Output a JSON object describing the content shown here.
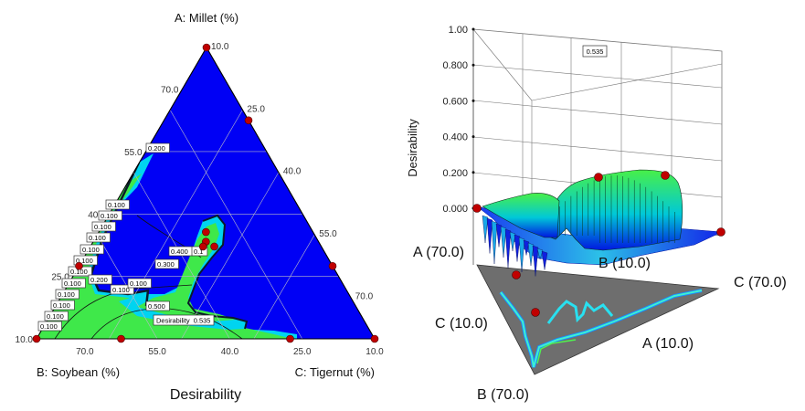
{
  "chart_data": [
    {
      "type": "heatmap",
      "subtype": "ternary-contour",
      "title": "",
      "xlabel": "Desirability",
      "vertex_labels": {
        "top": "A: Millet (%)",
        "left": "B: Soybean (%)",
        "right": "C: Tigernut (%)"
      },
      "tick_labels": {
        "A": [
          "10.0",
          "25.0",
          "40.0",
          "55.0",
          "70.0"
        ],
        "B": [
          "70.0",
          "55.0",
          "40.0",
          "25.0",
          "10.0"
        ],
        "C": [
          "10.0",
          "25.0",
          "40.0",
          "55.0",
          "70.0"
        ]
      },
      "contour_levels": [
        0.1,
        0.2,
        0.3,
        0.4,
        0.5
      ],
      "contour_labels": [
        "0.200",
        "0.100",
        "0.100",
        "0.100",
        "0.100",
        "0.100",
        "0.100",
        "0.100",
        "0.100",
        "0.100",
        "0.200",
        "0.100",
        "0.100",
        "0.100",
        "0.100",
        "0.400",
        "0.300",
        "0.100",
        "0.500",
        "0.1"
      ],
      "optimum": {
        "label": "Desirability",
        "value": 0.535
      },
      "design_points": [
        {
          "A": 70,
          "B": 10,
          "C": 10
        },
        {
          "A": 10,
          "B": 70,
          "C": 10
        },
        {
          "A": 10,
          "B": 10,
          "C": 70
        },
        {
          "A": 55,
          "B": 10,
          "C": 25
        },
        {
          "A": 25,
          "B": 10,
          "C": 55
        },
        {
          "A": 25,
          "B": 55,
          "C": 10
        },
        {
          "A": 10,
          "B": 55,
          "C": 25
        },
        {
          "A": 10,
          "B": 25,
          "C": 55
        },
        {
          "A": 30,
          "B": 30,
          "C": 30
        },
        {
          "A": 32,
          "B": 29,
          "C": 29
        },
        {
          "A": 29,
          "B": 29,
          "C": 32
        },
        {
          "A": 29,
          "B": 31,
          "C": 30
        }
      ],
      "colors": {
        "low": "#0000f5",
        "mid": "#00d4f0",
        "high": "#40f040"
      }
    },
    {
      "type": "surface-3d",
      "title": "",
      "zlabel": "Desirability",
      "z_ticks": [
        "0.000",
        "0.200",
        "0.400",
        "0.600",
        "0.800",
        "1.00"
      ],
      "zlim": [
        0,
        1
      ],
      "axis_labels": [
        "A (70.0)",
        "B (10.0)",
        "C (70.0)",
        "C (10.0)",
        "A (10.0)",
        "B (70.0)"
      ],
      "optimum_value": "0.535",
      "colors": {
        "low": "#0000f5",
        "mid": "#00d4f0",
        "high": "#40f040"
      }
    }
  ]
}
